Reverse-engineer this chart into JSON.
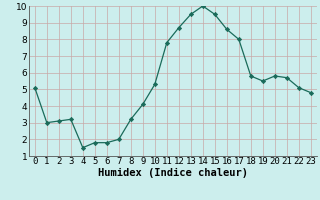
{
  "x": [
    0,
    1,
    2,
    3,
    4,
    5,
    6,
    7,
    8,
    9,
    10,
    11,
    12,
    13,
    14,
    15,
    16,
    17,
    18,
    19,
    20,
    21,
    22,
    23
  ],
  "y": [
    5.1,
    3.0,
    3.1,
    3.2,
    1.5,
    1.8,
    1.8,
    2.0,
    3.2,
    4.1,
    5.3,
    7.8,
    8.7,
    9.5,
    10.0,
    9.5,
    8.6,
    8.0,
    5.8,
    5.5,
    5.8,
    5.7,
    5.1,
    4.8
  ],
  "xlabel": "Humidex (Indice chaleur)",
  "ylim": [
    1,
    10
  ],
  "xlim_min": -0.5,
  "xlim_max": 23.5,
  "bg_color": "#cceeed",
  "grid_color_v": "#c8a8a8",
  "grid_color_h": "#c8a8a8",
  "line_color": "#1a6b5a",
  "marker_color": "#1a6b5a",
  "xlabel_fontsize": 7.5,
  "tick_fontsize": 6.5,
  "line_width": 0.9,
  "marker_size": 2.2
}
